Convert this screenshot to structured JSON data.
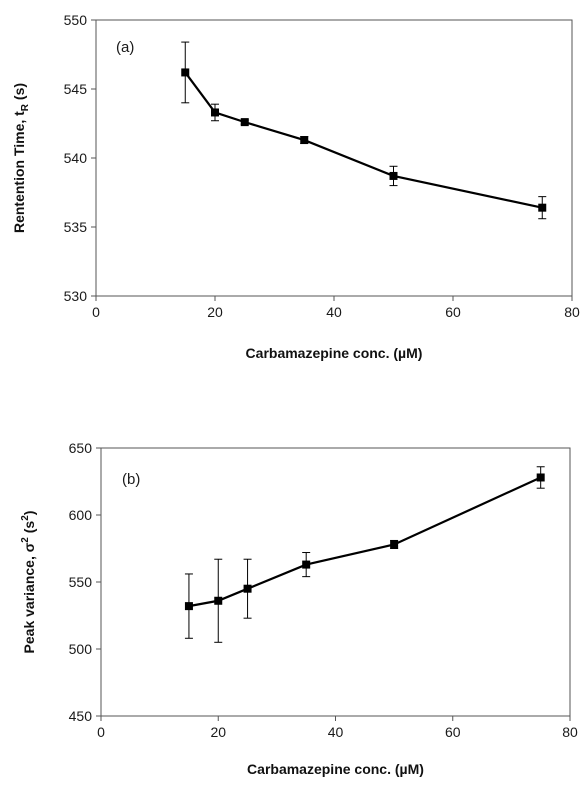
{
  "chart_data": [
    {
      "type": "line",
      "panel_label": "(a)",
      "xlabel": "Carbamazepine conc. (µM)",
      "ylabel_main": "Rentention Time, t",
      "ylabel_sub": "R",
      "ylabel_tail": " (s)",
      "xlim": [
        0,
        80
      ],
      "ylim": [
        530,
        550
      ],
      "xticks": [
        0,
        20,
        40,
        60,
        80
      ],
      "yticks": [
        530,
        535,
        540,
        545,
        550
      ],
      "grid": false,
      "color": "#000000",
      "series": [
        {
          "x": [
            15,
            20,
            25,
            35,
            50,
            75
          ],
          "y": [
            546.2,
            543.3,
            542.6,
            541.3,
            538.7,
            536.4
          ],
          "error": [
            2.2,
            0.6,
            0.15,
            0.25,
            0.7,
            0.8
          ]
        }
      ]
    },
    {
      "type": "line",
      "panel_label": "(b)",
      "xlabel": "Carbamazepine conc. (µM)",
      "ylabel_main": "Peak variance, σ",
      "ylabel_sup": "2",
      "ylabel_mid": " (s",
      "ylabel_sup2": "2",
      "ylabel_tail": ")",
      "xlim": [
        0,
        80
      ],
      "ylim": [
        450,
        650
      ],
      "xticks": [
        0,
        20,
        40,
        60,
        80
      ],
      "yticks": [
        450,
        500,
        550,
        600,
        650
      ],
      "grid": false,
      "color": "#000000",
      "series": [
        {
          "x": [
            15,
            20,
            25,
            35,
            50,
            75
          ],
          "y": [
            532,
            536,
            545,
            563,
            578,
            628
          ],
          "error": [
            24,
            31,
            22,
            9,
            3,
            8
          ]
        }
      ]
    }
  ]
}
